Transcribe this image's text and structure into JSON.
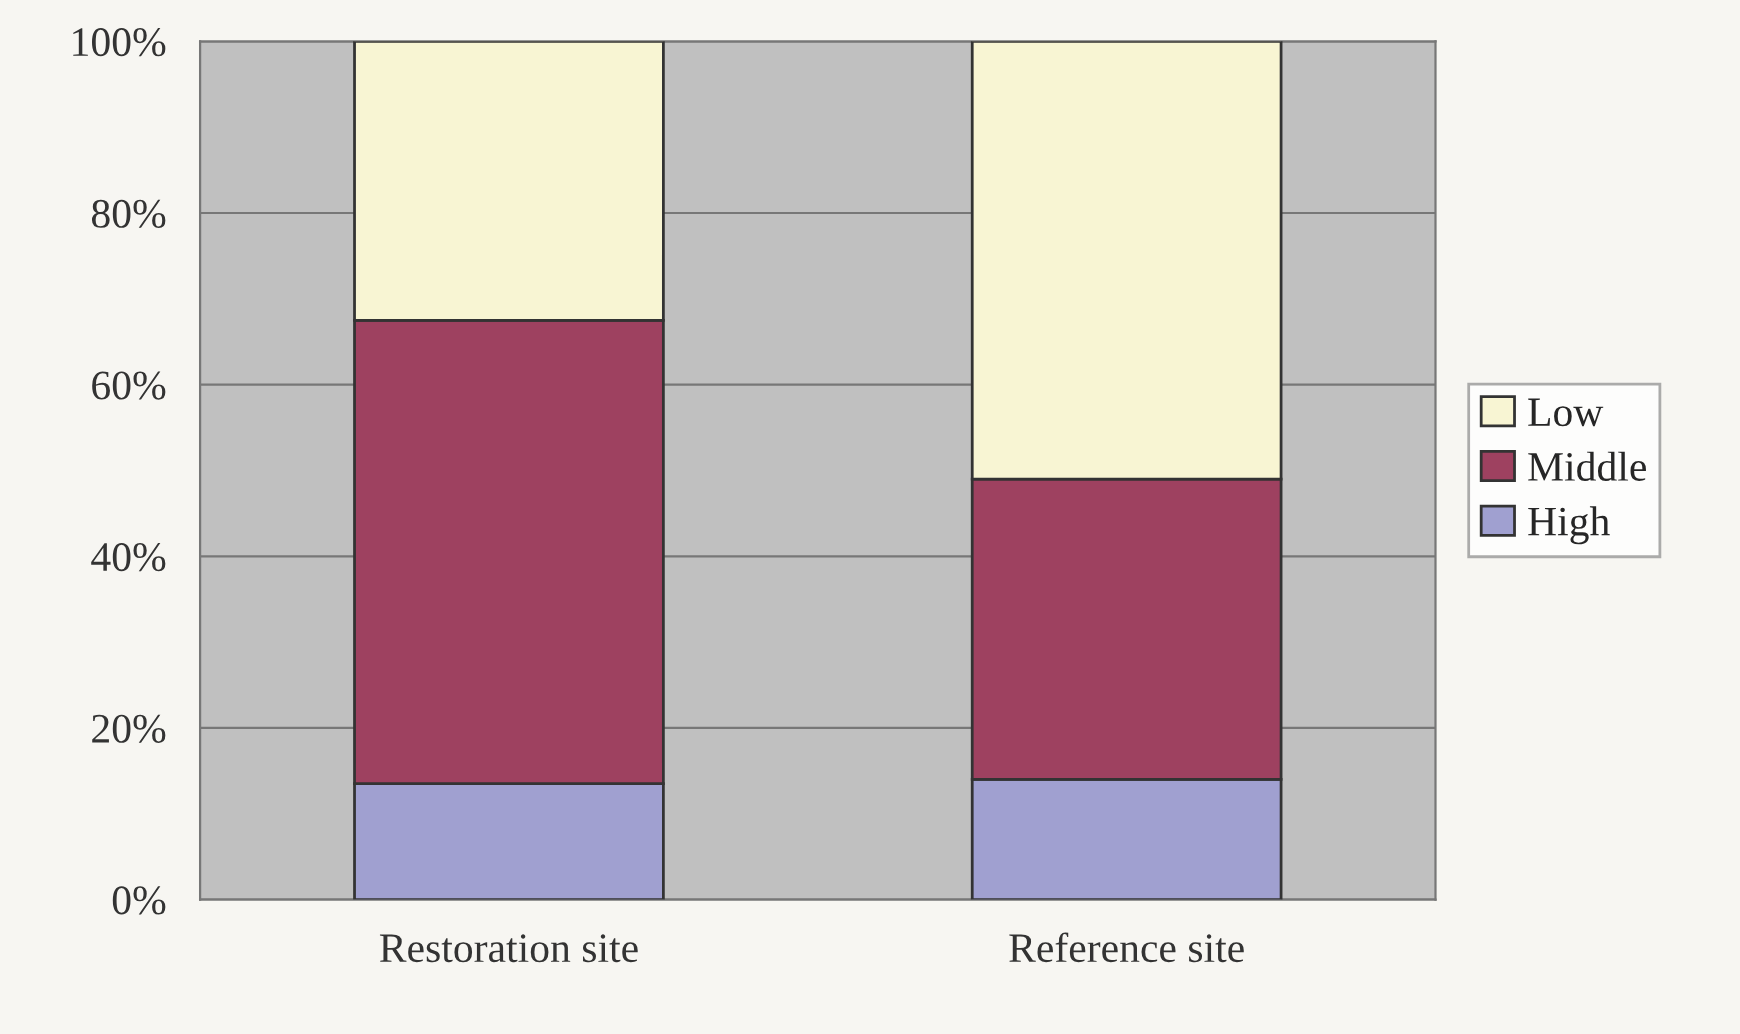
{
  "chart_data": {
    "type": "bar",
    "stacked": true,
    "categories": [
      "Restoration site",
      "Reference site"
    ],
    "series": [
      {
        "name": "High",
        "color": "#a0a0d0",
        "values": [
          13.5,
          14
        ]
      },
      {
        "name": "Middle",
        "color": "#9e4160",
        "values": [
          54,
          35
        ]
      },
      {
        "name": "Low",
        "color": "#f8f5d3",
        "values": [
          32.5,
          51
        ]
      }
    ],
    "ylim": [
      0,
      100
    ],
    "yticks": [
      {
        "value": 0,
        "label": "0%"
      },
      {
        "value": 20,
        "label": "20%"
      },
      {
        "value": 40,
        "label": "40%"
      },
      {
        "value": 60,
        "label": "60%"
      },
      {
        "value": 80,
        "label": "80%"
      },
      {
        "value": 100,
        "label": "100%"
      }
    ],
    "grid": "y",
    "legend": "right"
  }
}
